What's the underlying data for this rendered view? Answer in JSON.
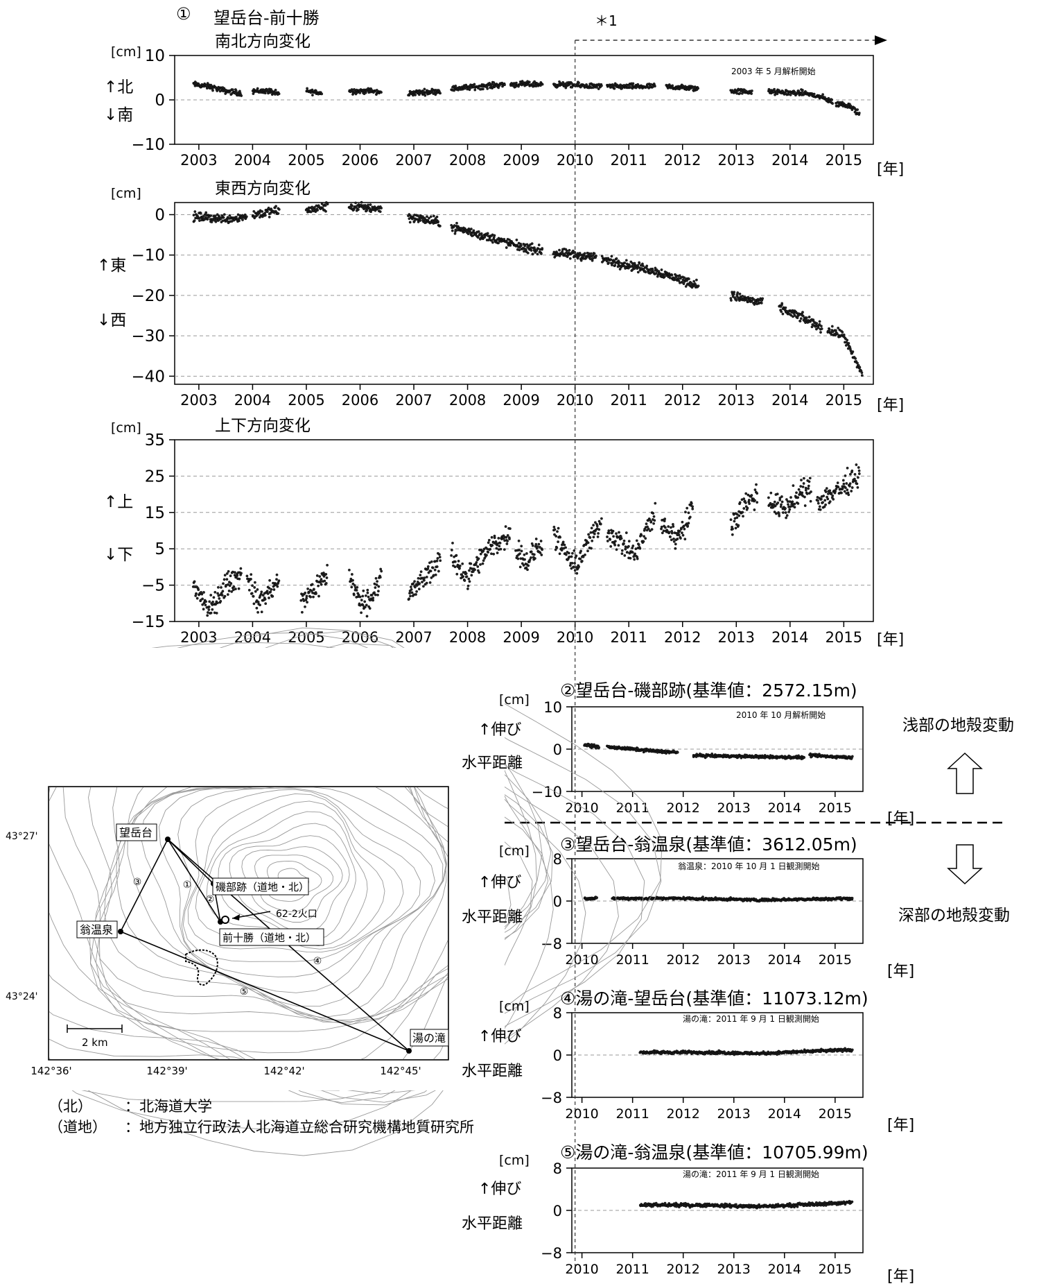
{
  "marker": {
    "label": "＊1"
  },
  "year_unit": "[年]",
  "panel1": {
    "num": "①",
    "title": "望岳台-前十勝",
    "sub_ns": "南北方向変化",
    "sub_ew": "東西方向変化",
    "sub_ud": "上下方向変化",
    "note": "2003 年 5 月解析開始"
  },
  "labels": {
    "unit": "[cm]",
    "north": "↑北",
    "south": "↓南",
    "east": "↑東",
    "west": "↓西",
    "up": "↑上",
    "down": "↓下",
    "extend": "↑伸び",
    "hdist": "水平距離"
  },
  "panel2": {
    "title": "②望岳台-磯部跡(基準値：2572.15m)",
    "note": "2010 年 10 月解析開始"
  },
  "panel3": {
    "title": "③望岳台-翁温泉(基準値：3612.05m)",
    "note": "翁温泉：2010 年 10 月 1 日観測開始"
  },
  "panel4": {
    "title": "④湯の滝-望岳台(基準値：11073.12m)",
    "note": "湯の滝：2011 年 9 月 1 日観測開始"
  },
  "panel5": {
    "title": "⑤湯の滝-翁温泉(基準値：10705.99m)",
    "note": "湯の滝：2011 年 9 月 1 日観測開始"
  },
  "side": {
    "shallow": "浅部の地殻変動",
    "deep": "深部の地殻変動"
  },
  "map": {
    "stations": [
      "望岳台",
      "翁温泉",
      "湯の滝",
      "磯部跡（道地・北）",
      "前十勝（道地・北）"
    ],
    "crater": "62-2火口",
    "lat": [
      "43°27'",
      "43°24'"
    ],
    "lon": [
      "142°36'",
      "142°39'",
      "142°42'",
      "142°45'"
    ],
    "scale": "2 km",
    "line_nums": [
      "①",
      "②",
      "③",
      "④",
      "⑤"
    ]
  },
  "notes": [
    {
      "k": "（北）",
      "v": "：北海道大学"
    },
    {
      "k": "（道地）",
      "v": "：地方独立行政法人北海道立総合研究機構地質研究所"
    }
  ],
  "chart_data": [
    {
      "id": "ns",
      "type": "scatter",
      "title": "南北方向変化",
      "ylabel": "[cm]",
      "ylim": [
        -10,
        10
      ],
      "yticks": [
        -10,
        0,
        10
      ],
      "xticks": [
        2003,
        2004,
        2005,
        2006,
        2007,
        2008,
        2009,
        2010,
        2011,
        2012,
        2013,
        2014,
        2015
      ],
      "segments": [
        [
          [
            2002.9,
            3.5
          ],
          [
            2003.2,
            3
          ],
          [
            2003.5,
            2
          ],
          [
            2003.8,
            1.5
          ]
        ],
        [
          [
            2004,
            2
          ],
          [
            2004.3,
            2
          ],
          [
            2004.5,
            1.2
          ]
        ],
        [
          [
            2005,
            2
          ],
          [
            2005.3,
            1.5
          ]
        ],
        [
          [
            2005.8,
            2
          ],
          [
            2006.2,
            2
          ],
          [
            2006.4,
            1.5
          ]
        ],
        [
          [
            2006.9,
            1.5
          ],
          [
            2007.5,
            2
          ]
        ],
        [
          [
            2007.7,
            2.5
          ],
          [
            2008.7,
            3.5
          ]
        ],
        [
          [
            2008.8,
            3.5
          ],
          [
            2009.4,
            3.5
          ]
        ],
        [
          [
            2009.6,
            3.5
          ],
          [
            2010.5,
            3
          ]
        ],
        [
          [
            2010.6,
            3
          ],
          [
            2011.5,
            3
          ]
        ],
        [
          [
            2011.7,
            3
          ],
          [
            2012.3,
            2.5
          ]
        ],
        [
          [
            2012.9,
            2
          ],
          [
            2013.3,
            1.8
          ]
        ],
        [
          [
            2013.6,
            1.8
          ],
          [
            2014.3,
            1.5
          ],
          [
            2014.6,
            0.5
          ],
          [
            2014.8,
            -0.5
          ]
        ],
        [
          [
            2014.85,
            -1
          ],
          [
            2015,
            -1
          ],
          [
            2015.15,
            -1.5
          ],
          [
            2015.3,
            -3.5
          ]
        ]
      ]
    },
    {
      "id": "ew",
      "type": "scatter",
      "title": "東西方向変化",
      "ylabel": "[cm]",
      "ylim": [
        -42,
        3
      ],
      "yticks": [
        0,
        -10,
        -20,
        -30,
        -40
      ],
      "xticks": [
        2003,
        2004,
        2005,
        2006,
        2007,
        2008,
        2009,
        2010,
        2011,
        2012,
        2013,
        2014,
        2015
      ],
      "segments": [
        [
          [
            2002.9,
            -0.5
          ],
          [
            2003.5,
            -1
          ],
          [
            2003.9,
            -0.5
          ]
        ],
        [
          [
            2004,
            0
          ],
          [
            2004.5,
            1
          ]
        ],
        [
          [
            2005,
            1
          ],
          [
            2005.4,
            2
          ]
        ],
        [
          [
            2005.8,
            2
          ],
          [
            2006.4,
            1.5
          ]
        ],
        [
          [
            2006.9,
            -0.5
          ],
          [
            2007.5,
            -2
          ]
        ],
        [
          [
            2007.7,
            -3
          ],
          [
            2008.5,
            -6
          ],
          [
            2009,
            -8
          ]
        ],
        [
          [
            2009,
            -8
          ],
          [
            2009.4,
            -9
          ]
        ],
        [
          [
            2009.6,
            -9.5
          ],
          [
            2010.4,
            -10.5
          ]
        ],
        [
          [
            2010.5,
            -11
          ],
          [
            2011.5,
            -14
          ],
          [
            2012.3,
            -17.5
          ]
        ],
        [
          [
            2012.9,
            -20
          ],
          [
            2013.5,
            -22
          ]
        ],
        [
          [
            2013.8,
            -23
          ],
          [
            2014.3,
            -26
          ],
          [
            2014.6,
            -28
          ]
        ],
        [
          [
            2014.7,
            -28.5
          ],
          [
            2015,
            -30
          ],
          [
            2015.2,
            -36
          ],
          [
            2015.35,
            -39.5
          ]
        ]
      ]
    },
    {
      "id": "ud",
      "type": "scatter",
      "title": "上下方向変化",
      "ylabel": "[cm]",
      "ylim": [
        -15,
        35
      ],
      "yticks": [
        -15,
        -5,
        5,
        15,
        25,
        35
      ],
      "xticks": [
        2003,
        2004,
        2005,
        2006,
        2007,
        2008,
        2009,
        2010,
        2011,
        2012,
        2013,
        2014,
        2015
      ],
      "segments": [
        [
          [
            2002.9,
            -5
          ],
          [
            2003.2,
            -12
          ],
          [
            2003.5,
            -5
          ],
          [
            2003.8,
            -2
          ]
        ],
        [
          [
            2003.9,
            -2
          ],
          [
            2004.1,
            -10
          ],
          [
            2004.3,
            -7
          ],
          [
            2004.5,
            -4
          ]
        ],
        [
          [
            2004.9,
            -10
          ],
          [
            2005.2,
            -5
          ],
          [
            2005.4,
            -2
          ]
        ],
        [
          [
            2005.8,
            -2
          ],
          [
            2006,
            -10
          ],
          [
            2006.2,
            -9
          ],
          [
            2006.4,
            -1
          ]
        ],
        [
          [
            2006.9,
            -8
          ],
          [
            2007.2,
            -3
          ],
          [
            2007.5,
            2
          ]
        ],
        [
          [
            2007.7,
            3
          ],
          [
            2008,
            -3
          ],
          [
            2008.4,
            5
          ],
          [
            2008.8,
            9
          ]
        ],
        [
          [
            2008.9,
            6
          ],
          [
            2009.1,
            1
          ],
          [
            2009.4,
            7
          ]
        ],
        [
          [
            2009.6,
            9
          ],
          [
            2009.8,
            4
          ],
          [
            2010,
            0
          ],
          [
            2010.3,
            8
          ],
          [
            2010.5,
            12
          ]
        ],
        [
          [
            2010.6,
            10
          ],
          [
            2010.9,
            6
          ],
          [
            2011.1,
            3
          ],
          [
            2011.4,
            12
          ],
          [
            2011.5,
            14
          ]
        ],
        [
          [
            2011.6,
            12
          ],
          [
            2011.9,
            8
          ],
          [
            2012.2,
            16
          ]
        ],
        [
          [
            2012.9,
            12
          ],
          [
            2013.2,
            18
          ],
          [
            2013.4,
            20
          ]
        ],
        [
          [
            2013.6,
            18
          ],
          [
            2013.9,
            16
          ],
          [
            2014.2,
            20
          ],
          [
            2014.4,
            22
          ]
        ],
        [
          [
            2014.5,
            18
          ],
          [
            2015,
            22
          ],
          [
            2015.3,
            26
          ]
        ]
      ]
    },
    {
      "id": "d2",
      "type": "scatter",
      "title": "②望岳台-磯部跡(基準値：2572.15m)",
      "ylabel": "[cm]",
      "ylim": [
        -10,
        10
      ],
      "yticks": [
        -10,
        0,
        10
      ],
      "xticks": [
        2010,
        2011,
        2012,
        2013,
        2014,
        2015
      ],
      "segments": [
        [
          [
            2010.05,
            1
          ],
          [
            2010.35,
            0.5
          ]
        ],
        [
          [
            2010.5,
            0.5
          ],
          [
            2011.5,
            -0.5
          ],
          [
            2011.9,
            -0.8
          ]
        ],
        [
          [
            2012.2,
            -1.5
          ],
          [
            2013.5,
            -1.8
          ],
          [
            2014.4,
            -2
          ]
        ],
        [
          [
            2014.5,
            -1.5
          ],
          [
            2015.35,
            -2
          ]
        ]
      ]
    },
    {
      "id": "d3",
      "type": "scatter",
      "title": "③望岳台-翁温泉(基準値：3612.05m)",
      "ylabel": "[cm]",
      "ylim": [
        -8,
        8
      ],
      "yticks": [
        -8,
        0,
        8
      ],
      "xticks": [
        2010,
        2011,
        2012,
        2013,
        2014,
        2015
      ],
      "segments": [
        [
          [
            2010.05,
            0.5
          ],
          [
            2010.3,
            0.5
          ]
        ],
        [
          [
            2010.6,
            0.5
          ],
          [
            2012,
            0.5
          ],
          [
            2013.5,
            0.2
          ],
          [
            2015.35,
            0.5
          ]
        ]
      ]
    },
    {
      "id": "d4",
      "type": "scatter",
      "title": "④湯の滝-望岳台(基準値：11073.12m)",
      "ylabel": "[cm]",
      "ylim": [
        -8,
        8
      ],
      "yticks": [
        -8,
        0,
        8
      ],
      "xticks": [
        2010,
        2011,
        2012,
        2013,
        2014,
        2015
      ],
      "segments": [
        [
          [
            2011.15,
            0.5
          ],
          [
            2012.5,
            0.5
          ],
          [
            2013.5,
            0.3
          ],
          [
            2015.35,
            1
          ]
        ]
      ]
    },
    {
      "id": "d5",
      "type": "scatter",
      "title": "⑤湯の滝-翁温泉(基準値：10705.99m)",
      "ylabel": "[cm]",
      "ylim": [
        -8,
        8
      ],
      "yticks": [
        -8,
        0,
        8
      ],
      "xticks": [
        2010,
        2011,
        2012,
        2013,
        2014,
        2015
      ],
      "segments": [
        [
          [
            2011.15,
            1
          ],
          [
            2012.5,
            1
          ],
          [
            2013.5,
            0.7
          ],
          [
            2015.35,
            1.5
          ]
        ]
      ]
    }
  ]
}
